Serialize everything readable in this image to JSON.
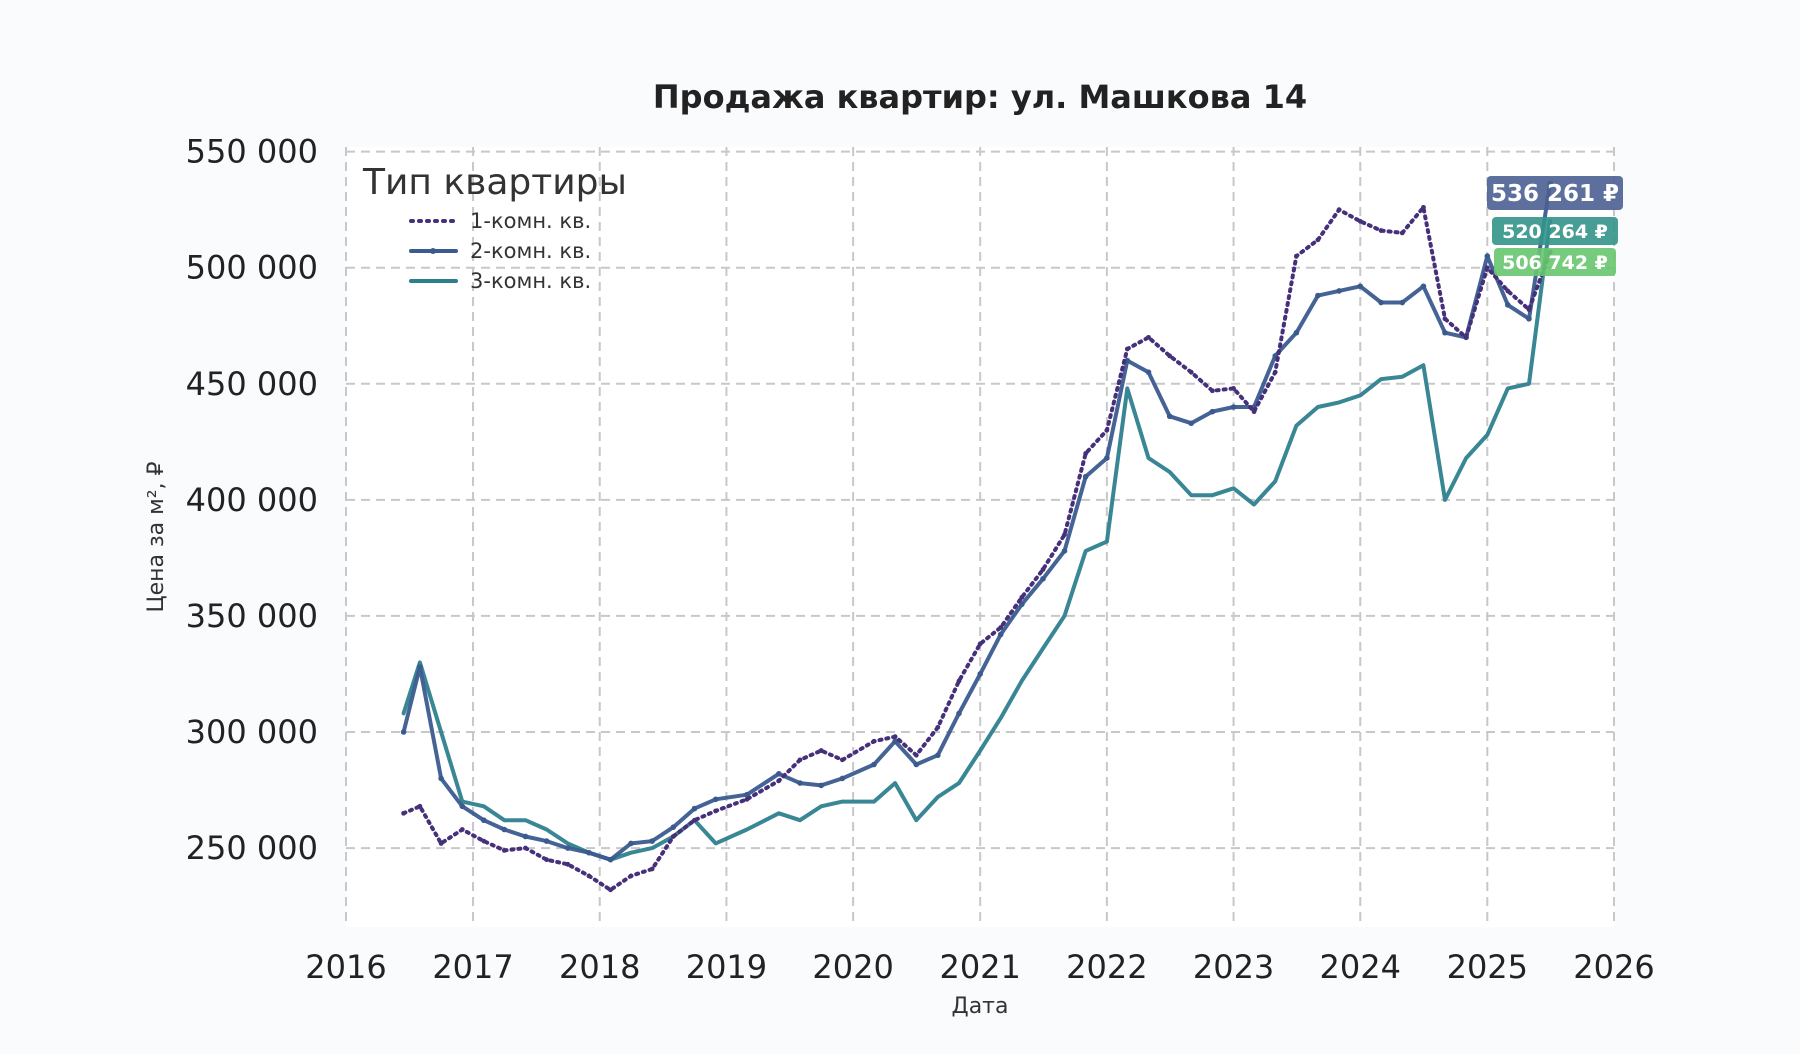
{
  "chart_data": {
    "type": "line",
    "title": "Продажа квартир: ул. Машкова 14",
    "xlabel": "Дата",
    "ylabel": "Цена за м², ₽",
    "xlim": [
      "2016-01-01",
      "2026-01-01"
    ],
    "ylim": [
      216000,
      552000
    ],
    "x_ticks": [
      "2016",
      "2017",
      "2018",
      "2019",
      "2020",
      "2021",
      "2022",
      "2023",
      "2024",
      "2025",
      "2026"
    ],
    "y_ticks": [
      250000,
      300000,
      350000,
      400000,
      450000,
      500000,
      550000
    ],
    "y_tick_labels": [
      "250 000",
      "300 000",
      "350 000",
      "400 000",
      "450 000",
      "500 000",
      "550 000"
    ],
    "grid": true,
    "legend": {
      "title": "Тип квартиры",
      "placement": "top-left"
    },
    "series": [
      {
        "name": "1-комн. кв.",
        "color": "#46307a",
        "style": "dotted",
        "points": [
          [
            "2016-06-15",
            265000
          ],
          [
            "2016-08-01",
            268000
          ],
          [
            "2016-10-01",
            252000
          ],
          [
            "2016-12-01",
            258000
          ],
          [
            "2017-02-01",
            253000
          ],
          [
            "2017-04-01",
            249000
          ],
          [
            "2017-06-01",
            250000
          ],
          [
            "2017-08-01",
            245000
          ],
          [
            "2017-10-01",
            243000
          ],
          [
            "2017-12-01",
            238000
          ],
          [
            "2018-02-01",
            232000
          ],
          [
            "2018-04-01",
            238000
          ],
          [
            "2018-06-01",
            241000
          ],
          [
            "2018-08-01",
            255000
          ],
          [
            "2018-10-01",
            262000
          ],
          [
            "2018-12-01",
            266000
          ],
          [
            "2019-03-01",
            271000
          ],
          [
            "2019-06-01",
            279000
          ],
          [
            "2019-08-01",
            288000
          ],
          [
            "2019-10-01",
            292000
          ],
          [
            "2019-12-01",
            288000
          ],
          [
            "2020-03-01",
            296000
          ],
          [
            "2020-05-01",
            298000
          ],
          [
            "2020-07-01",
            290000
          ],
          [
            "2020-09-01",
            302000
          ],
          [
            "2020-11-01",
            322000
          ],
          [
            "2021-01-01",
            338000
          ],
          [
            "2021-03-01",
            345000
          ],
          [
            "2021-05-01",
            358000
          ],
          [
            "2021-07-01",
            370000
          ],
          [
            "2021-09-01",
            385000
          ],
          [
            "2021-11-01",
            420000
          ],
          [
            "2022-01-01",
            430000
          ],
          [
            "2022-03-01",
            465000
          ],
          [
            "2022-05-01",
            470000
          ],
          [
            "2022-07-01",
            462000
          ],
          [
            "2022-09-01",
            455000
          ],
          [
            "2022-11-01",
            447000
          ],
          [
            "2023-01-01",
            448000
          ],
          [
            "2023-03-01",
            438000
          ],
          [
            "2023-05-01",
            455000
          ],
          [
            "2023-07-01",
            505000
          ],
          [
            "2023-09-01",
            512000
          ],
          [
            "2023-11-01",
            525000
          ],
          [
            "2024-01-01",
            520000
          ],
          [
            "2024-03-01",
            516000
          ],
          [
            "2024-05-01",
            515000
          ],
          [
            "2024-07-01",
            526000
          ],
          [
            "2024-09-01",
            478000
          ],
          [
            "2024-11-01",
            470000
          ],
          [
            "2025-01-01",
            500000
          ],
          [
            "2025-03-01",
            490000
          ],
          [
            "2025-05-01",
            482000
          ],
          [
            "2025-07-01",
            506742
          ]
        ],
        "end_label": "506 742 ₽",
        "end_label_color": "#67c76e"
      },
      {
        "name": "2-комн. кв.",
        "color": "#3b5b8f",
        "style": "solid-marker",
        "points": [
          [
            "2016-06-15",
            300000
          ],
          [
            "2016-08-01",
            328000
          ],
          [
            "2016-10-01",
            280000
          ],
          [
            "2016-12-01",
            268000
          ],
          [
            "2017-02-01",
            262000
          ],
          [
            "2017-04-01",
            258000
          ],
          [
            "2017-06-01",
            255000
          ],
          [
            "2017-08-01",
            253000
          ],
          [
            "2017-10-01",
            250000
          ],
          [
            "2017-12-01",
            248000
          ],
          [
            "2018-02-01",
            245000
          ],
          [
            "2018-04-01",
            252000
          ],
          [
            "2018-06-01",
            253000
          ],
          [
            "2018-08-01",
            259000
          ],
          [
            "2018-10-01",
            267000
          ],
          [
            "2018-12-01",
            271000
          ],
          [
            "2019-03-01",
            273000
          ],
          [
            "2019-06-01",
            282000
          ],
          [
            "2019-08-01",
            278000
          ],
          [
            "2019-10-01",
            277000
          ],
          [
            "2019-12-01",
            280000
          ],
          [
            "2020-03-01",
            286000
          ],
          [
            "2020-05-01",
            296000
          ],
          [
            "2020-07-01",
            286000
          ],
          [
            "2020-09-01",
            290000
          ],
          [
            "2020-11-01",
            308000
          ],
          [
            "2021-01-01",
            325000
          ],
          [
            "2021-03-01",
            342000
          ],
          [
            "2021-05-01",
            355000
          ],
          [
            "2021-07-01",
            366000
          ],
          [
            "2021-09-01",
            378000
          ],
          [
            "2021-11-01",
            410000
          ],
          [
            "2022-01-01",
            418000
          ],
          [
            "2022-03-01",
            460000
          ],
          [
            "2022-05-01",
            455000
          ],
          [
            "2022-07-01",
            436000
          ],
          [
            "2022-09-01",
            433000
          ],
          [
            "2022-11-01",
            438000
          ],
          [
            "2023-01-01",
            440000
          ],
          [
            "2023-03-01",
            440000
          ],
          [
            "2023-05-01",
            462000
          ],
          [
            "2023-07-01",
            472000
          ],
          [
            "2023-09-01",
            488000
          ],
          [
            "2023-11-01",
            490000
          ],
          [
            "2024-01-01",
            492000
          ],
          [
            "2024-03-01",
            485000
          ],
          [
            "2024-05-01",
            485000
          ],
          [
            "2024-07-01",
            492000
          ],
          [
            "2024-09-01",
            472000
          ],
          [
            "2024-11-01",
            470000
          ],
          [
            "2025-01-01",
            505000
          ],
          [
            "2025-03-01",
            484000
          ],
          [
            "2025-05-01",
            478000
          ],
          [
            "2025-07-01",
            536261
          ]
        ],
        "end_label": "536 261 ₽",
        "end_label_color": "#4a5f92"
      },
      {
        "name": "3-комн. кв.",
        "color": "#2e7f8e",
        "style": "solid",
        "points": [
          [
            "2016-06-15",
            308000
          ],
          [
            "2016-08-01",
            330000
          ],
          [
            "2016-10-01",
            300000
          ],
          [
            "2016-12-01",
            270000
          ],
          [
            "2017-02-01",
            268000
          ],
          [
            "2017-04-01",
            262000
          ],
          [
            "2017-06-01",
            262000
          ],
          [
            "2017-08-01",
            258000
          ],
          [
            "2017-10-01",
            252000
          ],
          [
            "2017-12-01",
            248000
          ],
          [
            "2018-02-01",
            245000
          ],
          [
            "2018-04-01",
            248000
          ],
          [
            "2018-06-01",
            250000
          ],
          [
            "2018-08-01",
            255000
          ],
          [
            "2018-10-01",
            262000
          ],
          [
            "2018-12-01",
            252000
          ],
          [
            "2019-03-01",
            258000
          ],
          [
            "2019-06-01",
            265000
          ],
          [
            "2019-08-01",
            262000
          ],
          [
            "2019-10-01",
            268000
          ],
          [
            "2019-12-01",
            270000
          ],
          [
            "2020-03-01",
            270000
          ],
          [
            "2020-05-01",
            278000
          ],
          [
            "2020-07-01",
            262000
          ],
          [
            "2020-09-01",
            272000
          ],
          [
            "2020-11-01",
            278000
          ],
          [
            "2021-01-01",
            292000
          ],
          [
            "2021-03-01",
            306000
          ],
          [
            "2021-05-01",
            322000
          ],
          [
            "2021-07-01",
            336000
          ],
          [
            "2021-09-01",
            350000
          ],
          [
            "2021-11-01",
            378000
          ],
          [
            "2022-01-01",
            382000
          ],
          [
            "2022-03-01",
            448000
          ],
          [
            "2022-05-01",
            418000
          ],
          [
            "2022-07-01",
            412000
          ],
          [
            "2022-09-01",
            402000
          ],
          [
            "2022-11-01",
            402000
          ],
          [
            "2023-01-01",
            405000
          ],
          [
            "2023-03-01",
            398000
          ],
          [
            "2023-05-01",
            408000
          ],
          [
            "2023-07-01",
            432000
          ],
          [
            "2023-09-01",
            440000
          ],
          [
            "2023-11-01",
            442000
          ],
          [
            "2024-01-01",
            445000
          ],
          [
            "2024-03-01",
            452000
          ],
          [
            "2024-05-01",
            453000
          ],
          [
            "2024-07-01",
            458000
          ],
          [
            "2024-09-01",
            400000
          ],
          [
            "2024-11-01",
            418000
          ],
          [
            "2025-01-01",
            428000
          ],
          [
            "2025-03-01",
            448000
          ],
          [
            "2025-05-01",
            450000
          ],
          [
            "2025-07-01",
            520264
          ]
        ],
        "end_label": "520 264 ₽",
        "end_label_color": "#33948a"
      }
    ]
  }
}
